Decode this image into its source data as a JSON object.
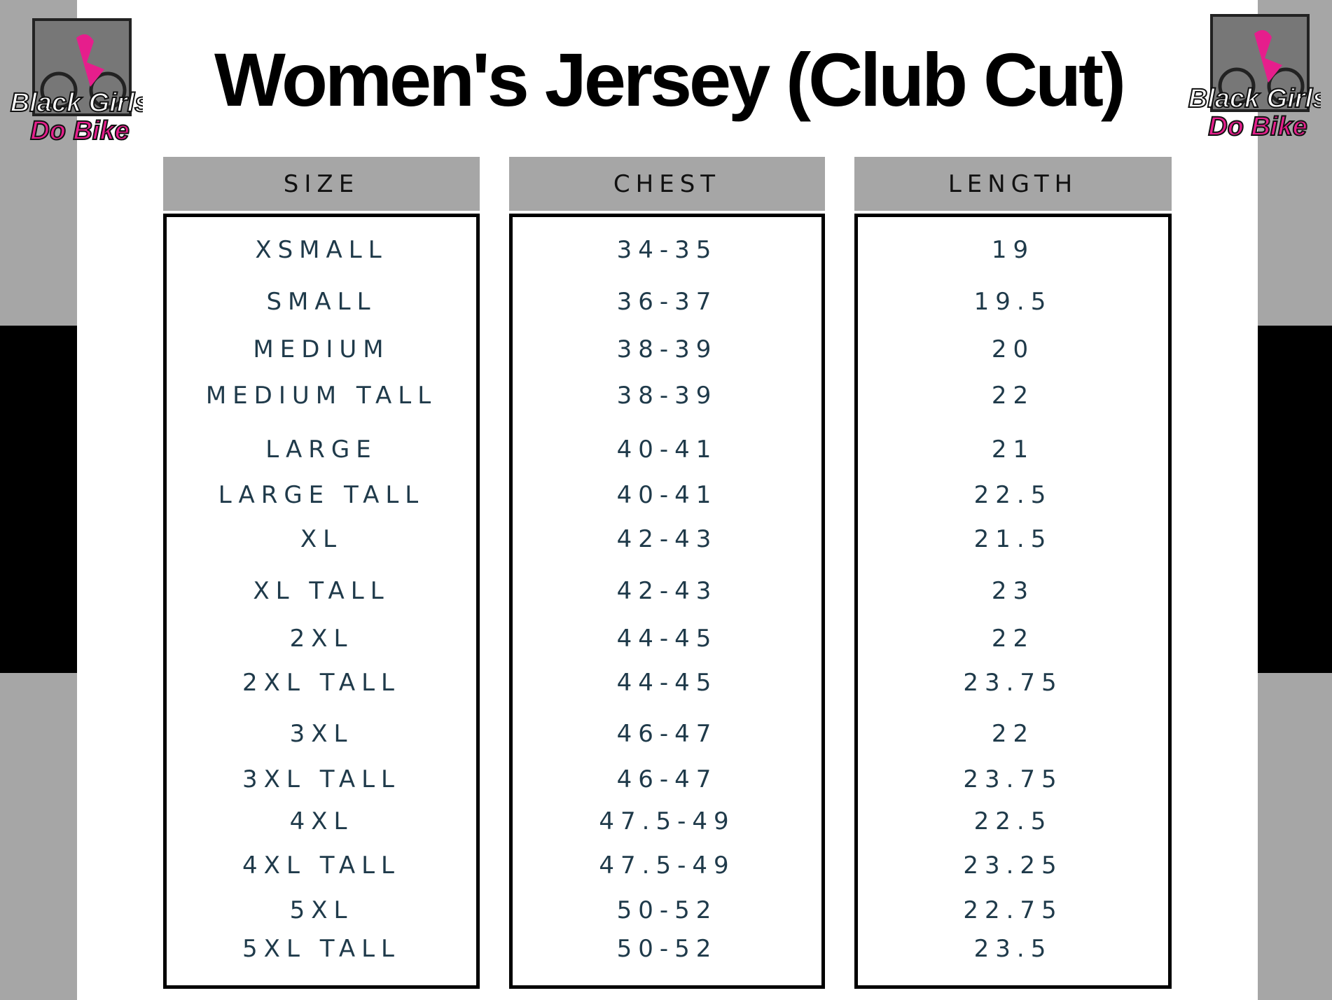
{
  "header": {
    "title": "Women's Jersey (Club Cut)",
    "logo": {
      "line1": "Black Girls",
      "line2": "Do Bike"
    }
  },
  "table": {
    "headers": [
      "SIZE",
      "CHEST",
      "LENGTH"
    ],
    "rows": [
      [
        "XSMALL",
        "34-35",
        "19"
      ],
      [
        "SMALL",
        "36-37",
        "19.5"
      ],
      [
        "MEDIUM",
        "38-39",
        "20"
      ],
      [
        "MEDIUM TALL",
        "38-39",
        "22"
      ],
      [
        "LARGE",
        "40-41",
        "21"
      ],
      [
        "LARGE TALL",
        "40-41",
        "22.5"
      ],
      [
        "XL",
        "42-43",
        "21.5"
      ],
      [
        "XL TALL",
        "42-43",
        "23"
      ],
      [
        "2XL",
        "44-45",
        "22"
      ],
      [
        "2XL TALL",
        "44-45",
        "23.75"
      ],
      [
        "3XL",
        "46-47",
        "22"
      ],
      [
        "3XL TALL",
        "46-47",
        "23.75"
      ],
      [
        "4XL",
        "47.5-49",
        "22.5"
      ],
      [
        "4XL TALL",
        "47.5-49",
        "23.25"
      ],
      [
        "5XL",
        "50-52",
        "22.75"
      ],
      [
        "5XL TALL",
        "50-52",
        "23.5"
      ]
    ]
  }
}
